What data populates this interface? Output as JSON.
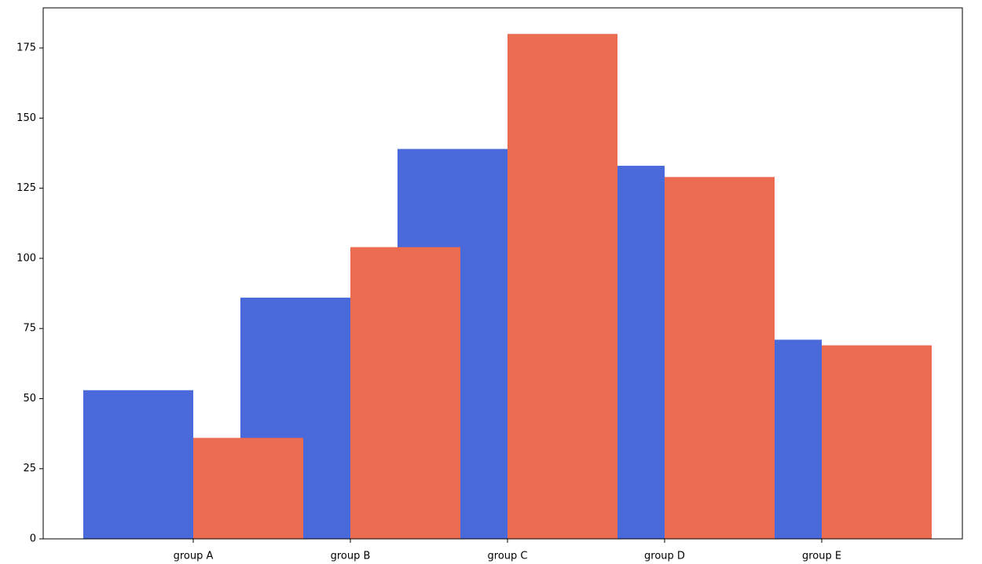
{
  "chart_data": {
    "type": "bar",
    "categories": [
      "group A",
      "group B",
      "group C",
      "group D",
      "group E"
    ],
    "series": [
      {
        "color": "#4a69db",
        "values": [
          53,
          86,
          139,
          133,
          71
        ]
      },
      {
        "color": "#ec6c52",
        "values": [
          36,
          104,
          180,
          129,
          69
        ]
      }
    ],
    "ylim": [
      0,
      189.3
    ],
    "yticks": [
      0,
      25,
      50,
      75,
      100,
      125,
      150,
      175
    ],
    "grid": false
  }
}
